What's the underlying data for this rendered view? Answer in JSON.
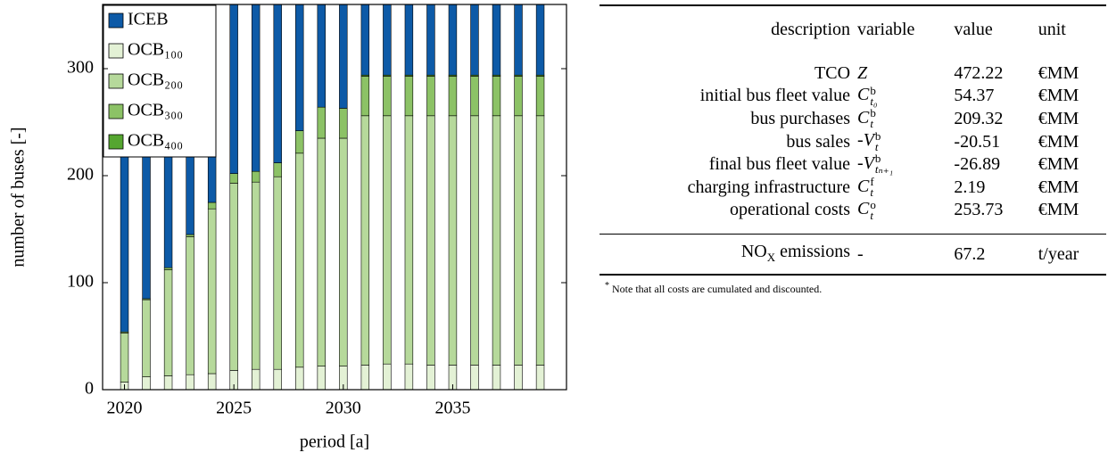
{
  "chart_data": {
    "type": "stacked_bar",
    "xlabel": "period [a]",
    "ylabel": "number of buses [-]",
    "x": [
      2020,
      2021,
      2022,
      2023,
      2024,
      2025,
      2026,
      2027,
      2028,
      2029,
      2030,
      2031,
      2032,
      2033,
      2034,
      2035,
      2036,
      2037,
      2038,
      2039
    ],
    "series": [
      {
        "name": "ICEB",
        "color": "#0d5aa7",
        "values": [
          346,
          315,
          286,
          255,
          225,
          198,
          196,
          188,
          158,
          136,
          137,
          106,
          106,
          106,
          106,
          106,
          106,
          106,
          106,
          106
        ]
      },
      {
        "name": "OCB₁₀₀",
        "color": "#e3f1d5",
        "values": [
          7,
          12,
          13,
          14,
          15,
          18,
          19,
          19,
          21,
          22,
          22,
          23,
          24,
          24,
          23,
          23,
          23,
          23,
          23,
          23
        ]
      },
      {
        "name": "OCB₂₀₀",
        "color": "#b6d99b",
        "values": [
          46,
          72,
          99,
          129,
          154,
          175,
          175,
          180,
          200,
          213,
          213,
          233,
          232,
          232,
          233,
          233,
          233,
          233,
          233,
          233
        ]
      },
      {
        "name": "OCB₃₀₀",
        "color": "#8cc266",
        "values": [
          1,
          1,
          2,
          2,
          6,
          9,
          10,
          13,
          21,
          29,
          28,
          37,
          37,
          37,
          37,
          37,
          37,
          37,
          37,
          37
        ]
      },
      {
        "name": "OCB₄₀₀",
        "color": "#55a630",
        "values": [
          0,
          0,
          0,
          0,
          0,
          0,
          0,
          0,
          0,
          0,
          0,
          1,
          1,
          1,
          1,
          1,
          1,
          1,
          1,
          1
        ]
      }
    ],
    "xlim": [
      2019,
      2040.2
    ],
    "xticks": [
      2020,
      2025,
      2030,
      2035
    ],
    "ylim": [
      0,
      360
    ],
    "yticks": [
      0,
      100,
      200,
      300
    ],
    "legend": "upper left"
  },
  "table": {
    "header": [
      "description",
      "variable",
      "value",
      "unit"
    ],
    "rows": [
      {
        "description": "TCO",
        "variable": {
          "base": "Z"
        },
        "value": 472.22,
        "unit": "€MM"
      },
      {
        "description": "initial bus fleet value",
        "variable": {
          "base": "C",
          "sup": "b",
          "sub": "t₀"
        },
        "value": 54.37,
        "unit": "€MM"
      },
      {
        "description": "bus purchases",
        "variable": {
          "base": "C",
          "sup": "b",
          "sub": "t"
        },
        "value": 209.32,
        "unit": "€MM"
      },
      {
        "description": "bus sales",
        "variable": {
          "prefix": "-",
          "base": "V",
          "sup": "b",
          "sub": "t"
        },
        "value": -20.51,
        "unit": "€MM"
      },
      {
        "description": "final bus fleet value",
        "variable": {
          "prefix": "-",
          "base": "V",
          "sup": "b",
          "sub": "tₙ₊₁"
        },
        "value": -26.89,
        "unit": "€MM"
      },
      {
        "description": "charging infrastructure",
        "variable": {
          "base": "C",
          "sup": "f",
          "sub": "t"
        },
        "value": 2.19,
        "unit": "€MM"
      },
      {
        "description": "operational costs",
        "variable": {
          "base": "C",
          "sup": "o",
          "sub": "t"
        },
        "value": 253.73,
        "unit": "€MM"
      }
    ],
    "summary": {
      "description": "NO",
      "description_sub": "X",
      "description_tail": " emissions",
      "variable": "-",
      "value": 67.2,
      "unit": "t/year"
    },
    "note_marker": "*",
    "note": "Note that all costs are cumulated and discounted."
  }
}
